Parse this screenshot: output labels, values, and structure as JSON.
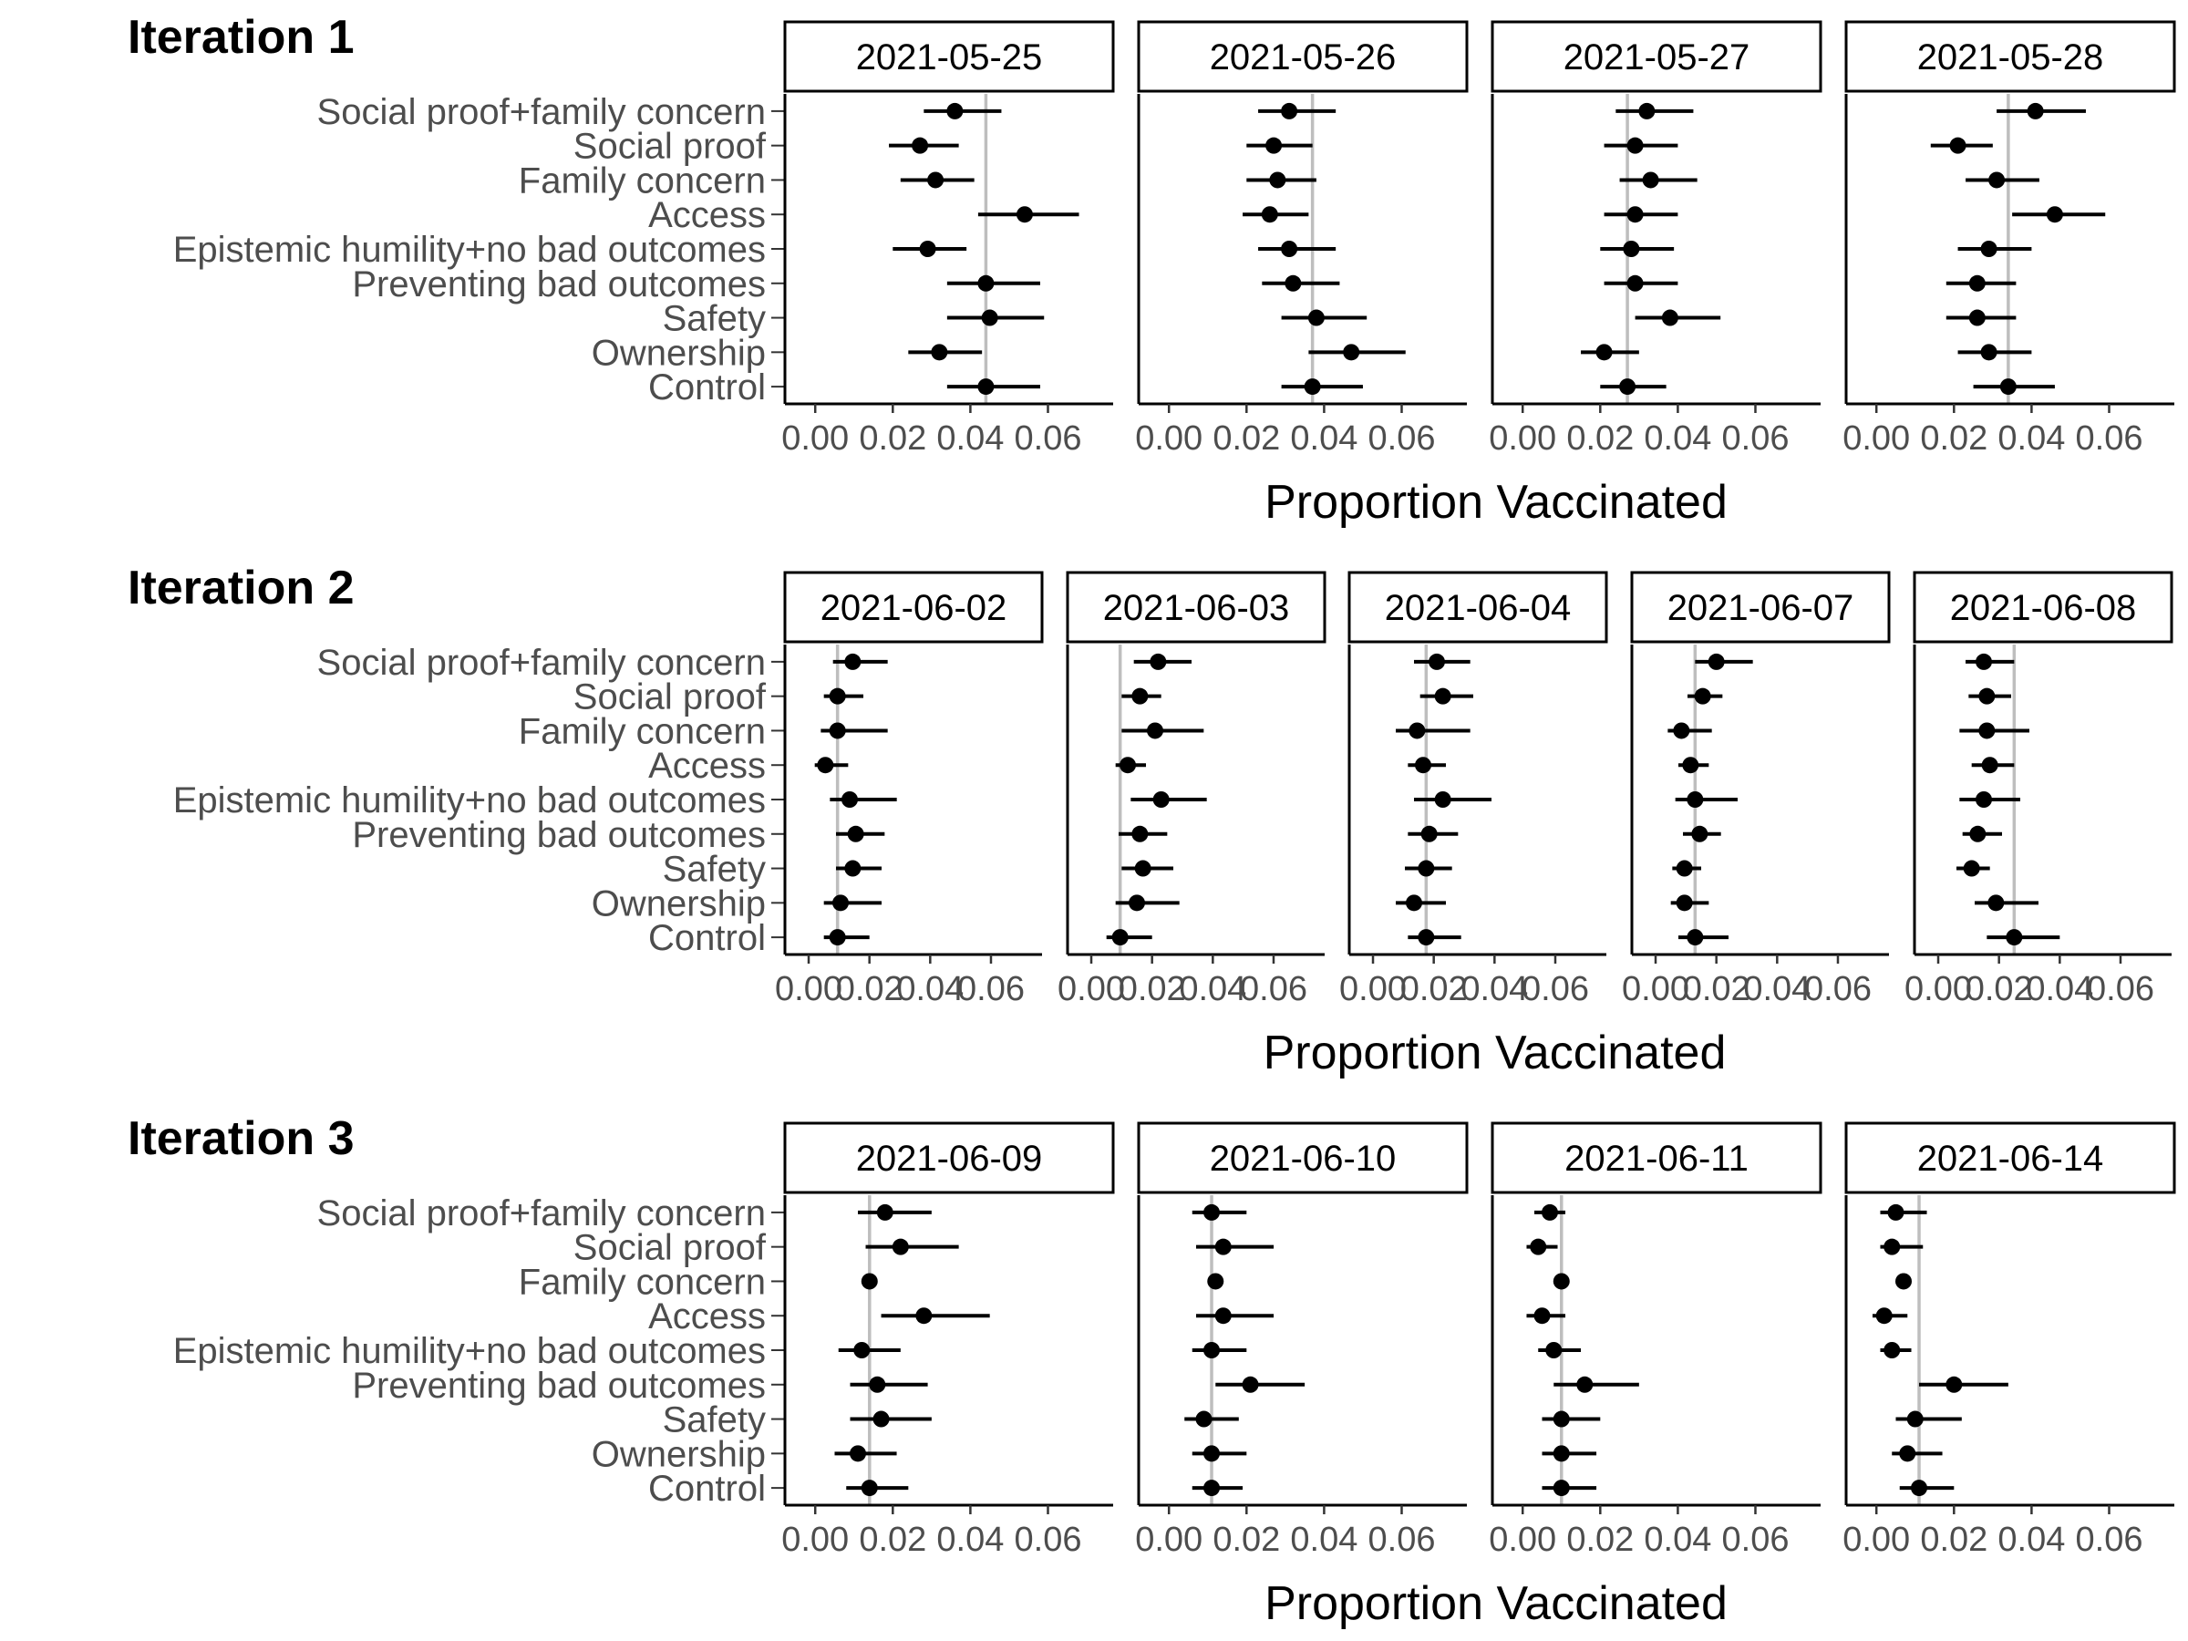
{
  "chart_data": {
    "type": "scatter",
    "subtype": "dot-and-whisker (point estimate with interval)",
    "xlabel": "Proportion Vaccinated",
    "categories": [
      "Social proof+family concern",
      "Social proof",
      "Family concern",
      "Access",
      "Epistemic humility+no bad outcomes",
      "Preventing bad outcomes",
      "Safety",
      "Ownership",
      "Control"
    ],
    "xlim": [
      -0.004,
      0.073
    ],
    "xticks": [
      0.0,
      0.02,
      0.04,
      0.06
    ],
    "xtick_labels": [
      "0.00",
      "0.02",
      "0.04",
      "0.06"
    ],
    "grid": false,
    "reference_line_color": "#bebebe",
    "point_color": "#000000",
    "iterations": [
      {
        "title": "Iteration 1",
        "panels": [
          {
            "date": "2021-05-25",
            "ref": 0.044,
            "est": [
              0.036,
              0.027,
              0.031,
              0.054,
              0.029,
              0.044,
              0.045,
              0.032,
              0.044
            ],
            "lo": [
              0.028,
              0.019,
              0.022,
              0.042,
              0.02,
              0.034,
              0.034,
              0.024,
              0.034
            ],
            "hi": [
              0.048,
              0.037,
              0.041,
              0.068,
              0.039,
              0.058,
              0.059,
              0.043,
              0.058
            ]
          },
          {
            "date": "2021-05-26",
            "ref": 0.037,
            "est": [
              0.031,
              0.027,
              0.028,
              0.026,
              0.031,
              0.032,
              0.038,
              0.047,
              0.037
            ],
            "lo": [
              0.023,
              0.02,
              0.02,
              0.019,
              0.023,
              0.024,
              0.029,
              0.036,
              0.029
            ],
            "hi": [
              0.043,
              0.037,
              0.038,
              0.036,
              0.043,
              0.044,
              0.051,
              0.061,
              0.05
            ]
          },
          {
            "date": "2021-05-27",
            "ref": 0.027,
            "est": [
              0.032,
              0.029,
              0.033,
              0.029,
              0.028,
              0.029,
              0.038,
              0.021,
              0.027
            ],
            "lo": [
              0.024,
              0.021,
              0.025,
              0.021,
              0.02,
              0.021,
              0.029,
              0.015,
              0.02
            ],
            "hi": [
              0.044,
              0.04,
              0.045,
              0.04,
              0.039,
              0.04,
              0.051,
              0.03,
              0.037
            ]
          },
          {
            "date": "2021-05-28",
            "ref": 0.034,
            "est": [
              0.041,
              0.021,
              0.031,
              0.046,
              0.029,
              0.026,
              0.026,
              0.029,
              0.034
            ],
            "lo": [
              0.031,
              0.014,
              0.023,
              0.035,
              0.021,
              0.018,
              0.018,
              0.021,
              0.025
            ],
            "hi": [
              0.054,
              0.03,
              0.042,
              0.059,
              0.04,
              0.036,
              0.036,
              0.04,
              0.046
            ]
          }
        ]
      },
      {
        "title": "Iteration 2",
        "panels": [
          {
            "date": "2021-06-02",
            "ref": 0.0095,
            "est": [
              0.0145,
              0.0095,
              0.0095,
              0.0055,
              0.0135,
              0.0155,
              0.0145,
              0.0105,
              0.0095
            ],
            "lo": [
              0.008,
              0.005,
              0.004,
              0.002,
              0.007,
              0.009,
              0.009,
              0.005,
              0.005
            ],
            "hi": [
              0.026,
              0.018,
              0.026,
              0.013,
              0.029,
              0.025,
              0.024,
              0.024,
              0.02
            ]
          },
          {
            "date": "2021-06-03",
            "ref": 0.0095,
            "est": [
              0.022,
              0.016,
              0.021,
              0.012,
              0.023,
              0.016,
              0.017,
              0.015,
              0.0095
            ],
            "lo": [
              0.014,
              0.01,
              0.01,
              0.008,
              0.013,
              0.009,
              0.01,
              0.008,
              0.005
            ],
            "hi": [
              0.033,
              0.023,
              0.037,
              0.018,
              0.038,
              0.025,
              0.027,
              0.029,
              0.02
            ]
          },
          {
            "date": "2021-06-04",
            "ref": 0.0175,
            "est": [
              0.021,
              0.023,
              0.0145,
              0.0165,
              0.023,
              0.0185,
              0.0175,
              0.0135,
              0.0175
            ],
            "lo": [
              0.0135,
              0.0155,
              0.0075,
              0.0115,
              0.0135,
              0.0115,
              0.0105,
              0.0075,
              0.0115
            ],
            "hi": [
              0.032,
              0.033,
              0.032,
              0.024,
              0.039,
              0.028,
              0.026,
              0.024,
              0.029
            ]
          },
          {
            "date": "2021-06-07",
            "ref": 0.013,
            "est": [
              0.02,
              0.0155,
              0.0085,
              0.0115,
              0.013,
              0.0145,
              0.0095,
              0.0095,
              0.013
            ],
            "lo": [
              0.013,
              0.0105,
              0.004,
              0.0075,
              0.0065,
              0.009,
              0.0055,
              0.005,
              0.0075
            ],
            "hi": [
              0.032,
              0.022,
              0.0185,
              0.0175,
              0.027,
              0.0215,
              0.015,
              0.0175,
              0.024
            ]
          },
          {
            "date": "2021-06-08",
            "ref": 0.025,
            "est": [
              0.015,
              0.016,
              0.016,
              0.017,
              0.015,
              0.013,
              0.011,
              0.019,
              0.025
            ],
            "lo": [
              0.009,
              0.01,
              0.007,
              0.011,
              0.007,
              0.008,
              0.006,
              0.012,
              0.016
            ],
            "hi": [
              0.025,
              0.024,
              0.03,
              0.025,
              0.027,
              0.021,
              0.017,
              0.033,
              0.04
            ]
          }
        ]
      },
      {
        "title": "Iteration 3",
        "panels": [
          {
            "date": "2021-06-09",
            "ref": 0.014,
            "est": [
              0.018,
              0.022,
              0.014,
              0.028,
              0.012,
              0.016,
              0.017,
              0.011,
              0.014
            ],
            "lo": [
              0.011,
              0.013,
              0.012,
              0.017,
              0.006,
              0.009,
              0.009,
              0.005,
              0.008
            ],
            "hi": [
              0.03,
              0.037,
              0.016,
              0.045,
              0.022,
              0.029,
              0.03,
              0.021,
              0.024
            ]
          },
          {
            "date": "2021-06-10",
            "ref": 0.011,
            "est": [
              0.011,
              0.014,
              0.012,
              0.014,
              0.011,
              0.021,
              0.009,
              0.011,
              0.011
            ],
            "lo": [
              0.006,
              0.007,
              0.01,
              0.007,
              0.006,
              0.012,
              0.004,
              0.006,
              0.006
            ],
            "hi": [
              0.02,
              0.027,
              0.014,
              0.027,
              0.02,
              0.035,
              0.018,
              0.02,
              0.019
            ]
          },
          {
            "date": "2021-06-11",
            "ref": 0.01,
            "est": [
              0.007,
              0.004,
              0.01,
              0.005,
              0.008,
              0.016,
              0.01,
              0.01,
              0.01
            ],
            "lo": [
              0.003,
              0.001,
              0.009,
              0.001,
              0.004,
              0.008,
              0.005,
              0.005,
              0.005
            ],
            "hi": [
              0.011,
              0.009,
              0.011,
              0.011,
              0.015,
              0.03,
              0.02,
              0.019,
              0.019
            ]
          },
          {
            "date": "2021-06-14",
            "ref": 0.011,
            "est": [
              0.005,
              0.004,
              0.007,
              0.002,
              0.004,
              0.02,
              0.01,
              0.008,
              0.011
            ],
            "lo": [
              0.001,
              0.001,
              0.006,
              -0.001,
              0.001,
              0.011,
              0.005,
              0.004,
              0.006
            ],
            "hi": [
              0.013,
              0.012,
              0.008,
              0.008,
              0.009,
              0.034,
              0.022,
              0.017,
              0.02
            ]
          }
        ]
      }
    ]
  }
}
